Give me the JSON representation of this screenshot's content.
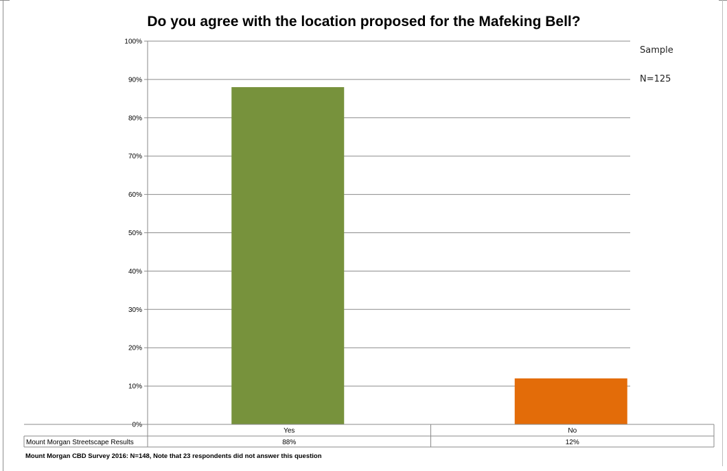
{
  "chart_data": {
    "type": "bar",
    "title": "Do you agree with the location proposed for the Mafeking Bell?",
    "categories": [
      "Yes",
      "No"
    ],
    "series": [
      {
        "name": "Mount Morgan Streetscape Results",
        "values": [
          88,
          12
        ],
        "colors": [
          "#77923c",
          "#e36c09"
        ]
      }
    ],
    "data_labels": [
      "88%",
      "12%"
    ],
    "ylim": [
      0,
      100
    ],
    "yticks": [
      "0%",
      "10%",
      "20%",
      "30%",
      "40%",
      "50%",
      "60%",
      "70%",
      "80%",
      "90%",
      "100%"
    ],
    "grid": true,
    "data_table": true,
    "annotations": [
      "Sample",
      "N=125"
    ],
    "footnote": "Mount Morgan CBD Survey 2016: N=148, Note that 23 respondents did not answer this question"
  }
}
